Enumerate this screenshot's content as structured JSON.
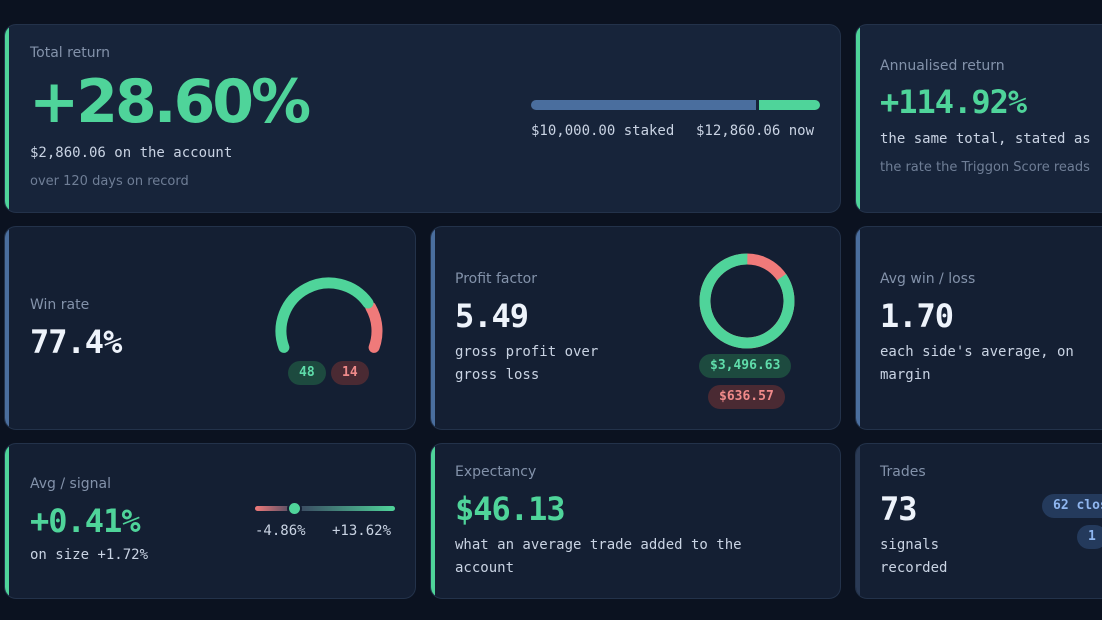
{
  "total_return": {
    "label": "Total return",
    "value": "+28.60%",
    "account_line": "$2,860.06 on the account",
    "period": "over 120 days on record",
    "staked_label": "$10,000.00 staked",
    "now_label": "$12,860.06 now",
    "staked_fraction": 0.7776
  },
  "annualised": {
    "label": "Annualised return",
    "value": "+114.92%",
    "line1": "the same total, stated as",
    "line2": "the rate the Triggon Score reads"
  },
  "win_rate": {
    "label": "Win rate",
    "value": "77.4%",
    "wins": "48",
    "losses": "14",
    "win_fraction": 0.774
  },
  "profit_factor": {
    "label": "Profit factor",
    "value": "5.49",
    "line1": "gross profit over",
    "line2": "gross loss",
    "gross_profit": "$3,496.63",
    "gross_loss": "$636.57",
    "profit_fraction": 0.846
  },
  "avg_win_loss": {
    "label": "Avg win / loss",
    "value": "1.70",
    "line1": "each side's average, on",
    "line2": "margin"
  },
  "avg_signal": {
    "label": "Avg / signal",
    "value": "+0.41%",
    "line1": "on size +1.72%",
    "min_label": "-4.86%",
    "max_label": "+13.62%",
    "min": -4.86,
    "max": 13.62,
    "avg": 0.41
  },
  "expectancy": {
    "label": "Expectancy",
    "value": "$46.13",
    "line1": "what an average trade added to the",
    "line2": "account"
  },
  "trades": {
    "label": "Trades",
    "value": "73",
    "line1": "signals",
    "line2": "recorded",
    "closed_pill": "62 clos",
    "open_pill": "1"
  },
  "colors": {
    "green": "#4fd49a",
    "red": "#f07a7a",
    "blue_track": "#4a6e9e",
    "background": "#0b1220"
  }
}
